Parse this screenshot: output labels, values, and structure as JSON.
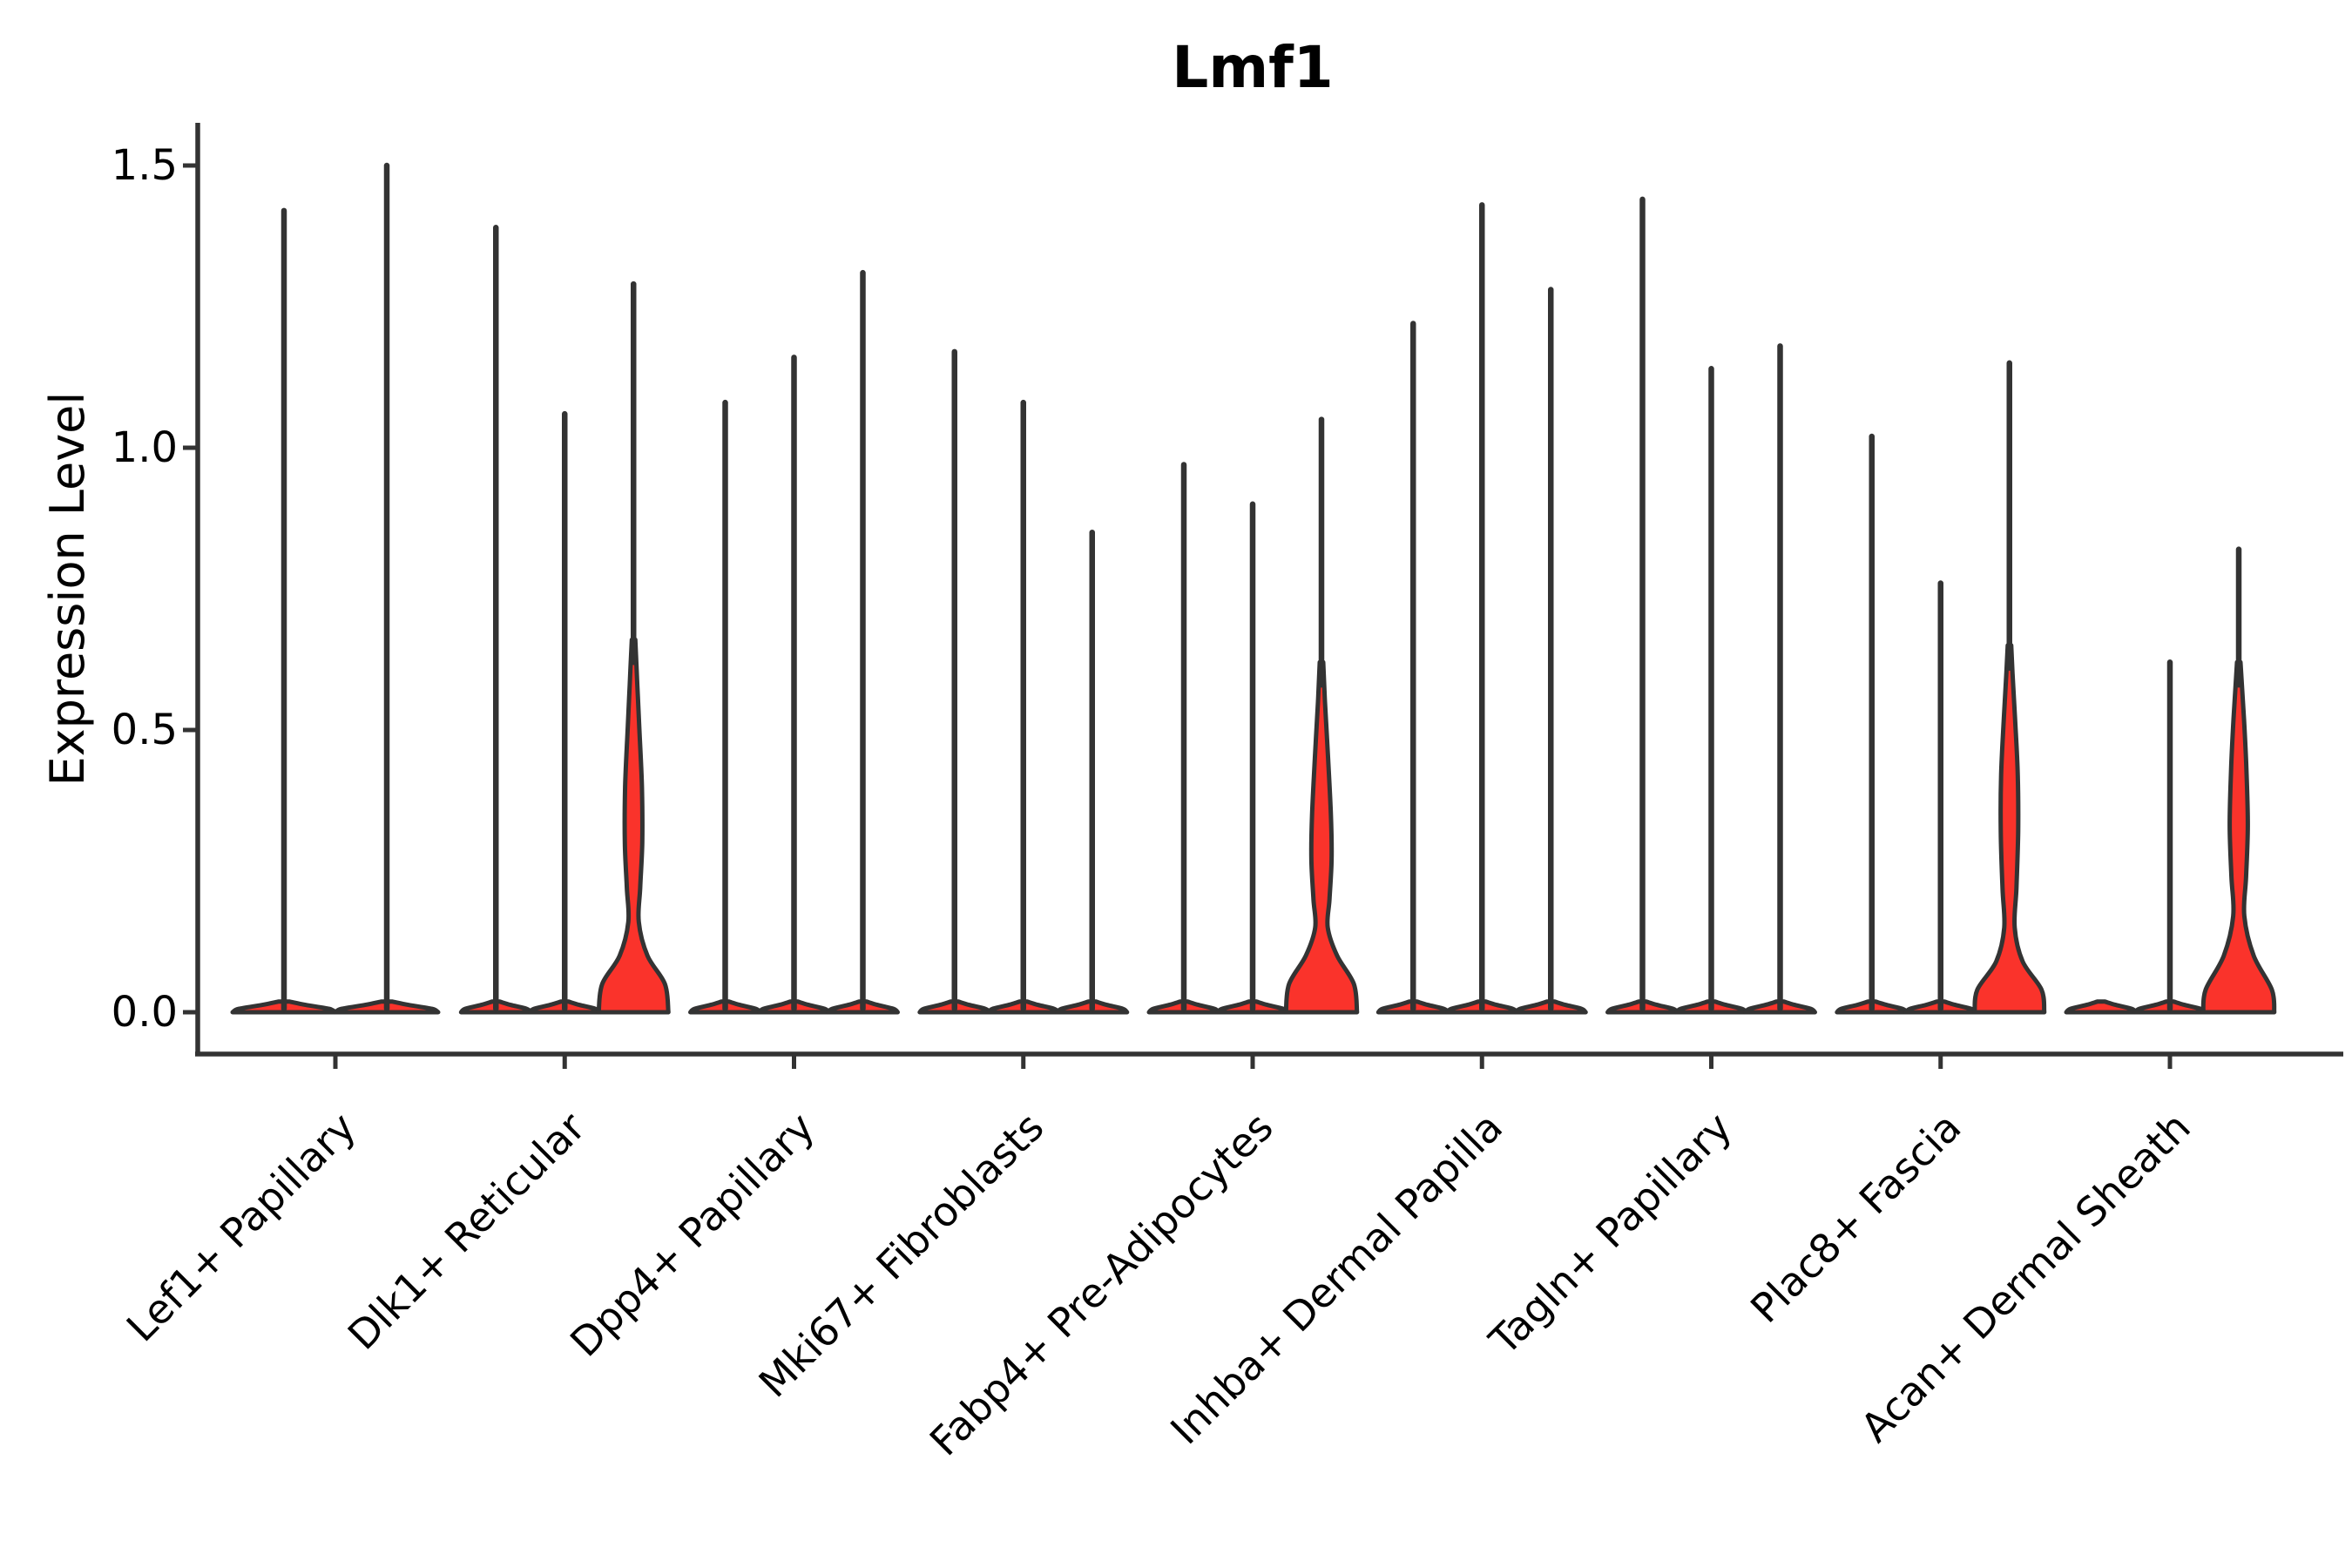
{
  "title": "Lmf1",
  "y_axis": {
    "label": "Expression Level",
    "tick_labels": [
      "0.0",
      "0.5",
      "1.0",
      "1.5"
    ],
    "tick_values": [
      0.0,
      0.5,
      1.0,
      1.5
    ]
  },
  "x_axis": {
    "categories": [
      "Lef1+ Papillary",
      "Dlk1+ Reticular",
      "Dpp4+ Papillary",
      "Mki67+ Fibroblasts",
      "Fabp4+ Pre-Adipocytes",
      "Inhba+ Dermal Papilla",
      "Tagln+ Papillary",
      "Plac8+ Fascia",
      "Acan+ Dermal Sheath"
    ]
  },
  "colors": {
    "violin_fill": "#fa332b",
    "line": "#333333",
    "text": "#000000",
    "background": "#ffffff"
  },
  "chart_data": {
    "type": "violin",
    "title": "Lmf1",
    "xlabel": "",
    "ylabel": "Expression Level",
    "ylim": [
      -0.07,
      1.58
    ],
    "yticks": [
      0.0,
      0.5,
      1.0,
      1.5
    ],
    "grid": false,
    "legend_position": "none",
    "notes": "Zero-inflated single-cell expression violins: each violin is a wide flat density at 0 with a thin spike up to the max expression value; four violins additionally show a visible red density bulge above 0.",
    "groups": [
      {
        "category": "Lef1+ Papillary",
        "violins": [
          {
            "max_expression": 1.42,
            "shape": "spike"
          },
          {
            "max_expression": 1.5,
            "shape": "spike"
          }
        ]
      },
      {
        "category": "Dlk1+ Reticular",
        "violins": [
          {
            "max_expression": 1.39,
            "shape": "spike"
          },
          {
            "max_expression": 1.06,
            "shape": "spike"
          },
          {
            "max_expression": 1.29,
            "shape": "bulge",
            "profile": [
              [
                0,
                1.0
              ],
              [
                0.05,
                0.9
              ],
              [
                0.1,
                0.4
              ],
              [
                0.16,
                0.15
              ],
              [
                0.22,
                0.19
              ],
              [
                0.3,
                0.25
              ],
              [
                0.4,
                0.24
              ],
              [
                0.5,
                0.17
              ],
              [
                0.58,
                0.11
              ],
              [
                0.66,
                0.05
              ]
            ]
          }
        ]
      },
      {
        "category": "Dpp4+ Papillary",
        "violins": [
          {
            "max_expression": 1.08,
            "shape": "spike"
          },
          {
            "max_expression": 1.16,
            "shape": "spike"
          },
          {
            "max_expression": 1.31,
            "shape": "spike"
          }
        ]
      },
      {
        "category": "Mki67+ Fibroblasts",
        "violins": [
          {
            "max_expression": 1.17,
            "shape": "spike"
          },
          {
            "max_expression": 1.08,
            "shape": "spike"
          },
          {
            "max_expression": 0.85,
            "shape": "spike"
          }
        ]
      },
      {
        "category": "Fabp4+ Pre-Adipocytes",
        "violins": [
          {
            "max_expression": 0.97,
            "shape": "spike"
          },
          {
            "max_expression": 0.9,
            "shape": "spike"
          },
          {
            "max_expression": 1.05,
            "shape": "bulge",
            "profile": [
              [
                0,
                1.02
              ],
              [
                0.05,
                0.93
              ],
              [
                0.1,
                0.45
              ],
              [
                0.15,
                0.18
              ],
              [
                0.2,
                0.23
              ],
              [
                0.27,
                0.29
              ],
              [
                0.35,
                0.27
              ],
              [
                0.45,
                0.19
              ],
              [
                0.55,
                0.1
              ],
              [
                0.62,
                0.05
              ]
            ]
          }
        ]
      },
      {
        "category": "Inhba+ Dermal Papilla",
        "violins": [
          {
            "max_expression": 1.22,
            "shape": "spike"
          },
          {
            "max_expression": 1.43,
            "shape": "spike"
          },
          {
            "max_expression": 1.28,
            "shape": "spike"
          }
        ]
      },
      {
        "category": "Tagln+ Papillary",
        "violins": [
          {
            "max_expression": 1.44,
            "shape": "spike"
          },
          {
            "max_expression": 1.14,
            "shape": "spike"
          },
          {
            "max_expression": 1.18,
            "shape": "spike"
          }
        ]
      },
      {
        "category": "Plac8+ Fascia",
        "violins": [
          {
            "max_expression": 1.02,
            "shape": "spike"
          },
          {
            "max_expression": 0.76,
            "shape": "spike"
          },
          {
            "max_expression": 1.15,
            "shape": "bulge",
            "profile": [
              [
                0,
                1.0
              ],
              [
                0.04,
                0.92
              ],
              [
                0.09,
                0.38
              ],
              [
                0.15,
                0.15
              ],
              [
                0.22,
                0.2
              ],
              [
                0.32,
                0.25
              ],
              [
                0.42,
                0.24
              ],
              [
                0.52,
                0.16
              ],
              [
                0.6,
                0.09
              ],
              [
                0.65,
                0.05
              ]
            ]
          }
        ]
      },
      {
        "category": "Acan+ Dermal Sheath",
        "violins": [
          {
            "max_expression": 0.0,
            "shape": "flat"
          },
          {
            "max_expression": 0.62,
            "shape": "spike"
          },
          {
            "max_expression": 0.82,
            "shape": "bulge",
            "profile": [
              [
                0,
                1.02
              ],
              [
                0.04,
                0.95
              ],
              [
                0.1,
                0.43
              ],
              [
                0.17,
                0.16
              ],
              [
                0.24,
                0.21
              ],
              [
                0.33,
                0.26
              ],
              [
                0.43,
                0.22
              ],
              [
                0.52,
                0.15
              ],
              [
                0.58,
                0.09
              ],
              [
                0.62,
                0.05
              ]
            ]
          }
        ]
      }
    ]
  }
}
